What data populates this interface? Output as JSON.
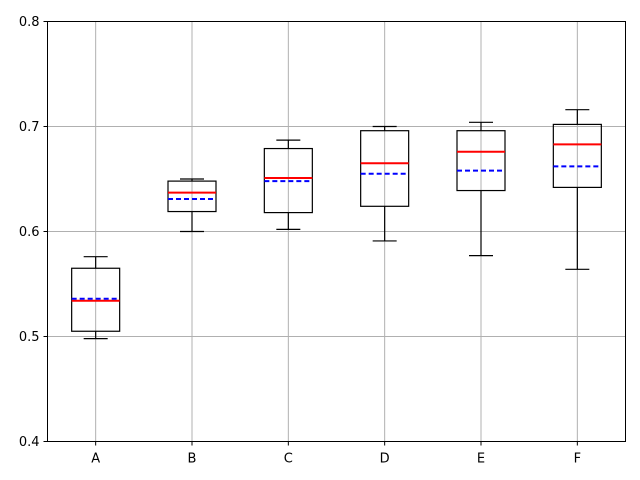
{
  "chart_data": {
    "type": "box",
    "title": "",
    "xlabel": "",
    "ylabel": "",
    "ylim": [
      0.4,
      0.8
    ],
    "yticks": [
      "0.4",
      "0.5",
      "0.6",
      "0.7",
      "0.8"
    ],
    "grid": true,
    "median_color": "#ff0000",
    "mean_color": "#0000ff",
    "boxes": [
      {
        "category": "A",
        "whislo": 0.498,
        "q1": 0.505,
        "median": 0.534,
        "mean": 0.536,
        "q3": 0.565,
        "whishi": 0.576
      },
      {
        "category": "B",
        "whislo": 0.6,
        "q1": 0.619,
        "median": 0.637,
        "mean": 0.631,
        "q3": 0.648,
        "whishi": 0.65
      },
      {
        "category": "C",
        "whislo": 0.602,
        "q1": 0.618,
        "median": 0.651,
        "mean": 0.648,
        "q3": 0.679,
        "whishi": 0.687
      },
      {
        "category": "D",
        "whislo": 0.591,
        "q1": 0.624,
        "median": 0.665,
        "mean": 0.655,
        "q3": 0.696,
        "whishi": 0.7
      },
      {
        "category": "E",
        "whislo": 0.577,
        "q1": 0.639,
        "median": 0.676,
        "mean": 0.658,
        "q3": 0.696,
        "whishi": 0.704
      },
      {
        "category": "F",
        "whislo": 0.564,
        "q1": 0.642,
        "median": 0.683,
        "mean": 0.662,
        "q3": 0.702,
        "whishi": 0.716
      }
    ]
  }
}
